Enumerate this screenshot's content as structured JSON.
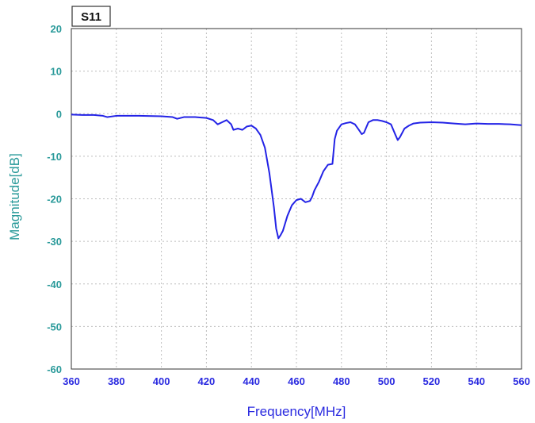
{
  "chart_data": {
    "type": "line",
    "title": "S11",
    "xlabel": "Frequency[MHz]",
    "ylabel": "Magnitude[dB]",
    "xlim": [
      360,
      560
    ],
    "ylim": [
      -60,
      20
    ],
    "x_ticks": [
      360,
      380,
      400,
      420,
      440,
      460,
      480,
      500,
      520,
      540,
      560
    ],
    "y_ticks": [
      20,
      10,
      0,
      -10,
      -20,
      -30,
      -40,
      -50,
      -60
    ],
    "grid": true,
    "line_color": "#2323e6",
    "x_tick_color": "#2a2ae0",
    "y_tick_color": "#2a9a9a",
    "series": [
      {
        "x": [
          360,
          365,
          370,
          374,
          376,
          380,
          390,
          400,
          405,
          407,
          410,
          415,
          420,
          423,
          425,
          427,
          429,
          431,
          432,
          434,
          436,
          438,
          440,
          442,
          444,
          446,
          448,
          450,
          451,
          452,
          453,
          454,
          456,
          458,
          460,
          462,
          464,
          466,
          467,
          468,
          470,
          472,
          474,
          476,
          477,
          478,
          480,
          482,
          484,
          486,
          488,
          489,
          490,
          492,
          494,
          496,
          498,
          500,
          502,
          504,
          505,
          506,
          508,
          510,
          512,
          515,
          520,
          525,
          530,
          535,
          540,
          545,
          550,
          555,
          560
        ],
        "y": [
          -0.2,
          -0.3,
          -0.3,
          -0.5,
          -0.8,
          -0.5,
          -0.5,
          -0.6,
          -0.8,
          -1.2,
          -0.8,
          -0.8,
          -1.0,
          -1.5,
          -2.5,
          -2.0,
          -1.5,
          -2.5,
          -3.8,
          -3.5,
          -3.8,
          -3.0,
          -2.8,
          -3.5,
          -5.0,
          -8.0,
          -14.0,
          -22.0,
          -27.0,
          -29.3,
          -28.5,
          -27.5,
          -24.0,
          -21.5,
          -20.3,
          -20.0,
          -20.8,
          -20.5,
          -19.5,
          -18.0,
          -16.0,
          -13.5,
          -12.0,
          -11.8,
          -6.0,
          -4.0,
          -2.5,
          -2.2,
          -2.0,
          -2.5,
          -4.0,
          -4.8,
          -4.5,
          -2.0,
          -1.5,
          -1.5,
          -1.7,
          -2.0,
          -2.5,
          -5.0,
          -6.2,
          -5.5,
          -3.5,
          -2.8,
          -2.3,
          -2.1,
          -2.0,
          -2.1,
          -2.3,
          -2.5,
          -2.3,
          -2.4,
          -2.4,
          -2.5,
          -2.7
        ]
      }
    ]
  }
}
